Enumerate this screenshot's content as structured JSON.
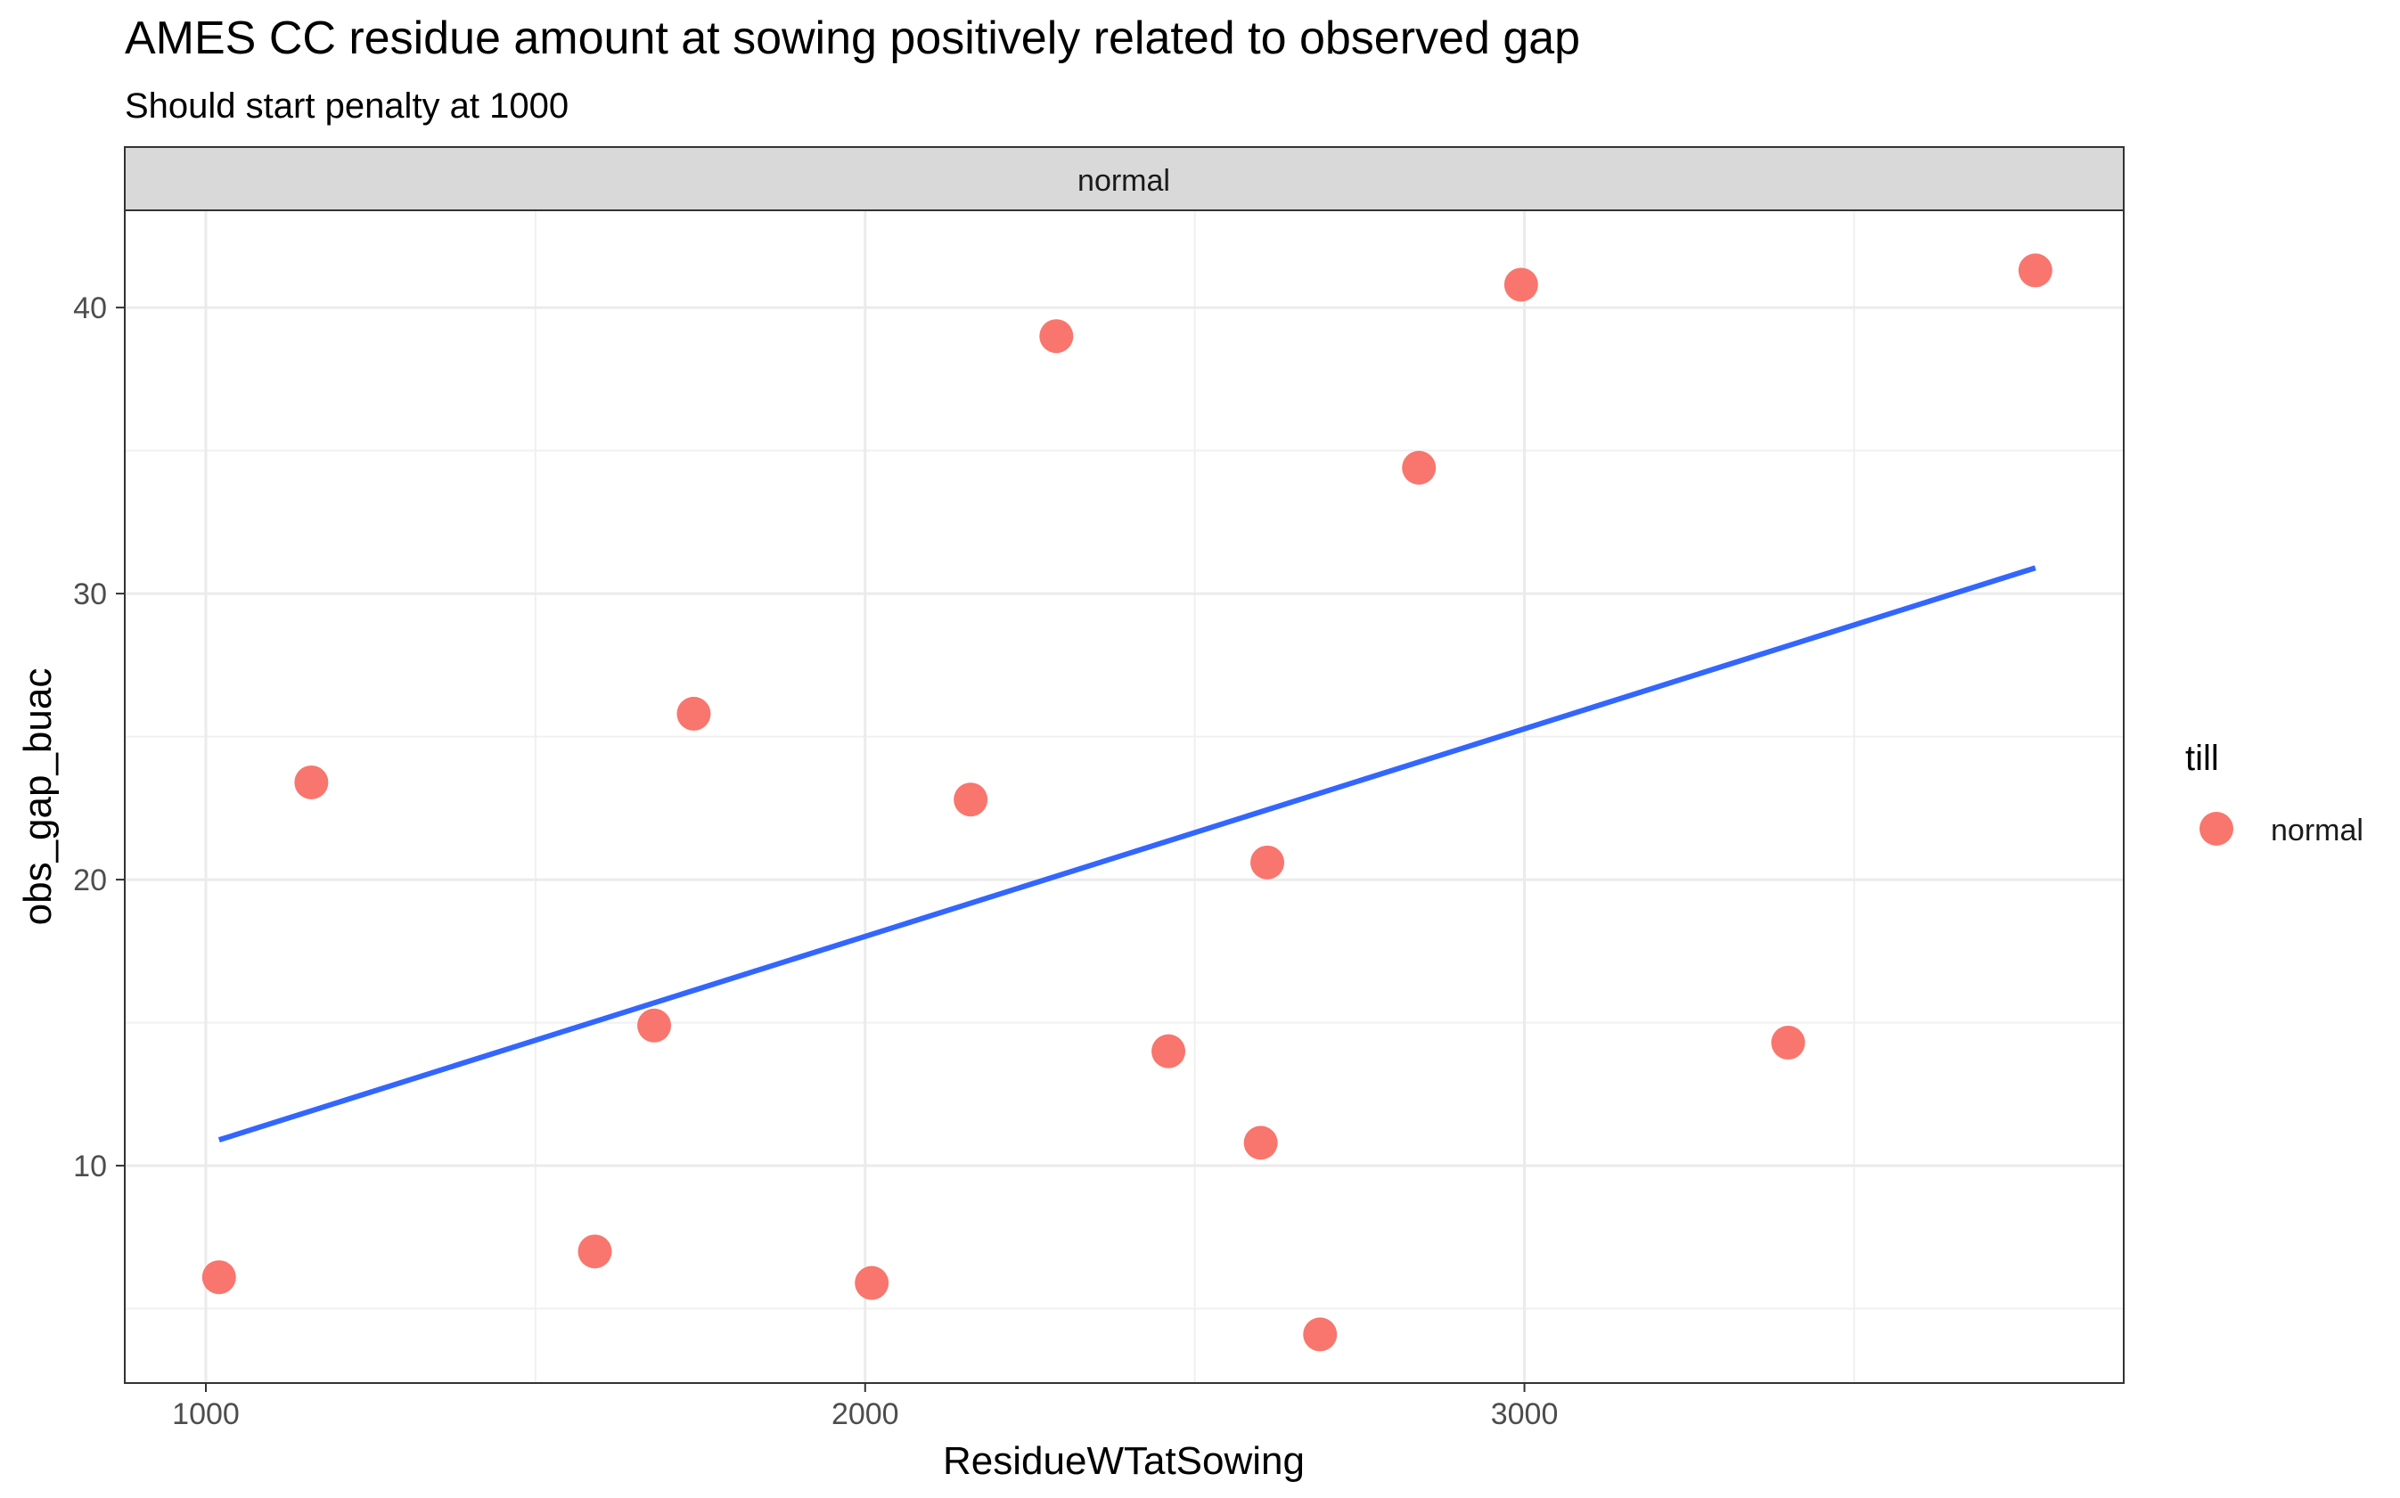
{
  "chart_data": {
    "type": "scatter",
    "title": "AMES CC residue amount at sowing positively related to observed gap",
    "subtitle": "Should start penalty at 1000",
    "facet_label": "normal",
    "xlabel": "ResidueWTatSowing",
    "ylabel": "obs_gap_buac",
    "xlim": [
      877,
      3909
    ],
    "ylim": [
      2.4,
      43.4
    ],
    "x_ticks": [
      1000,
      2000,
      3000
    ],
    "y_ticks": [
      10,
      20,
      30,
      40
    ],
    "grid": true,
    "legend": {
      "title": "till",
      "placement": "right",
      "entries": [
        "normal"
      ]
    },
    "series": [
      {
        "name": "normal",
        "color": "#F8766D",
        "points": [
          {
            "x": 1020,
            "y": 6.1
          },
          {
            "x": 1160,
            "y": 23.4
          },
          {
            "x": 1590,
            "y": 7.0
          },
          {
            "x": 1680,
            "y": 14.9
          },
          {
            "x": 1740,
            "y": 25.8
          },
          {
            "x": 2010,
            "y": 5.9
          },
          {
            "x": 2160,
            "y": 22.8
          },
          {
            "x": 2290,
            "y": 39.0
          },
          {
            "x": 2460,
            "y": 14.0
          },
          {
            "x": 2600,
            "y": 10.8
          },
          {
            "x": 2610,
            "y": 20.6
          },
          {
            "x": 2690,
            "y": 4.1
          },
          {
            "x": 2840,
            "y": 34.4
          },
          {
            "x": 2995,
            "y": 40.8
          },
          {
            "x": 3400,
            "y": 14.3
          },
          {
            "x": 3775,
            "y": 41.3
          }
        ]
      }
    ],
    "trend_line": {
      "method": "linear fit",
      "color": "#3366FF",
      "x": [
        1020,
        3775
      ],
      "y": [
        10.9,
        30.9
      ]
    }
  }
}
